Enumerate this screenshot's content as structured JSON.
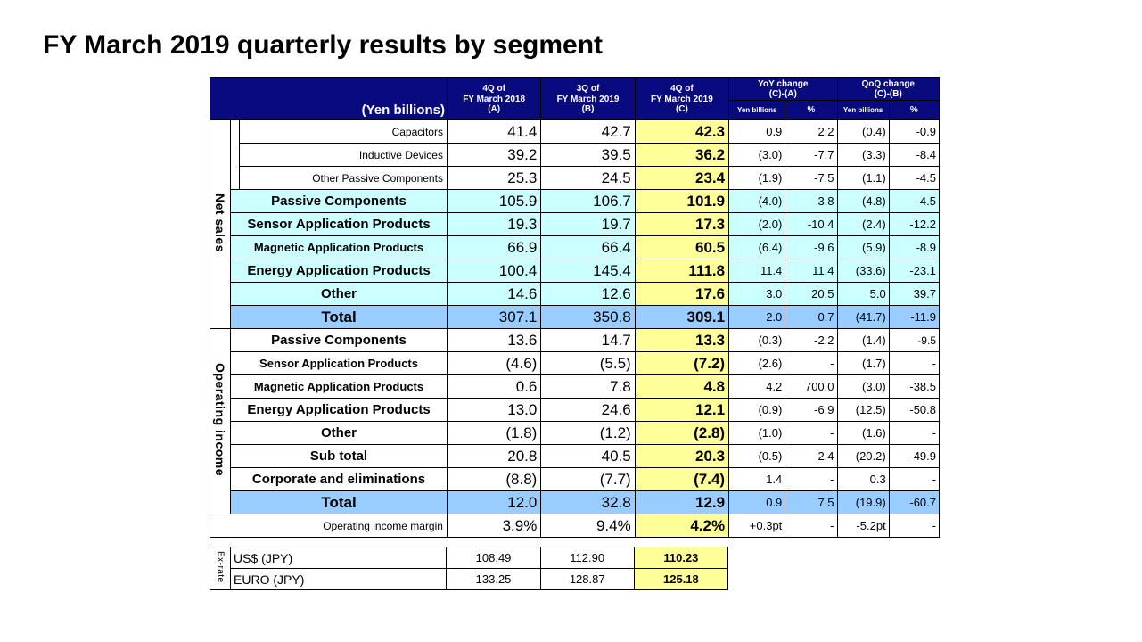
{
  "title": "FY March 2019 quarterly results by segment",
  "header": {
    "unit": "(Yen billions)",
    "col_a": [
      "4Q of",
      "FY March 2018",
      "(A)"
    ],
    "col_b": [
      "3Q of",
      "FY March 2019",
      "(B)"
    ],
    "col_c": [
      "4Q of",
      "FY March 2019",
      "(C)"
    ],
    "yoy": [
      "YoY change",
      "(C)-(A)"
    ],
    "qoq": [
      "QoQ change",
      "(C)-(B)"
    ],
    "yen_billions": "Yen billions",
    "pct": "%"
  },
  "net_sales": {
    "label": "Net sales",
    "rows": [
      {
        "label": "Capacitors",
        "a": "41.4",
        "b": "42.7",
        "c": "42.3",
        "yoy": "0.9",
        "yoy_pct": "2.2",
        "qoq": "(0.4)",
        "qoq_pct": "-0.9"
      },
      {
        "label": "Inductive Devices",
        "a": "39.2",
        "b": "39.5",
        "c": "36.2",
        "yoy": "(3.0)",
        "yoy_pct": "-7.7",
        "qoq": "(3.3)",
        "qoq_pct": "-8.4"
      },
      {
        "label": "Other Passive Components",
        "a": "25.3",
        "b": "24.5",
        "c": "23.4",
        "yoy": "(1.9)",
        "yoy_pct": "-7.5",
        "qoq": "(1.1)",
        "qoq_pct": "-4.5"
      },
      {
        "label": "Passive Components",
        "a": "105.9",
        "b": "106.7",
        "c": "101.9",
        "yoy": "(4.0)",
        "yoy_pct": "-3.8",
        "qoq": "(4.8)",
        "qoq_pct": "-4.5"
      },
      {
        "label": "Sensor Application Products",
        "a": "19.3",
        "b": "19.7",
        "c": "17.3",
        "yoy": "(2.0)",
        "yoy_pct": "-10.4",
        "qoq": "(2.4)",
        "qoq_pct": "-12.2"
      },
      {
        "label": "Magnetic Application Products",
        "a": "66.9",
        "b": "66.4",
        "c": "60.5",
        "yoy": "(6.4)",
        "yoy_pct": "-9.6",
        "qoq": "(5.9)",
        "qoq_pct": "-8.9"
      },
      {
        "label": "Energy Application Products",
        "a": "100.4",
        "b": "145.4",
        "c": "111.8",
        "yoy": "11.4",
        "yoy_pct": "11.4",
        "qoq": "(33.6)",
        "qoq_pct": "-23.1"
      },
      {
        "label": "Other",
        "a": "14.6",
        "b": "12.6",
        "c": "17.6",
        "yoy": "3.0",
        "yoy_pct": "20.5",
        "qoq": "5.0",
        "qoq_pct": "39.7"
      },
      {
        "label": "Total",
        "a": "307.1",
        "b": "350.8",
        "c": "309.1",
        "yoy": "2.0",
        "yoy_pct": "0.7",
        "qoq": "(41.7)",
        "qoq_pct": "-11.9"
      }
    ]
  },
  "operating_income": {
    "label": "Operating income",
    "rows": [
      {
        "label": "Passive Components",
        "a": "13.6",
        "b": "14.7",
        "c": "13.3",
        "yoy": "(0.3)",
        "yoy_pct": "-2.2",
        "qoq": "(1.4)",
        "qoq_pct": "-9.5"
      },
      {
        "label": "Sensor Application Products",
        "a": "(4.6)",
        "b": "(5.5)",
        "c": "(7.2)",
        "yoy": "(2.6)",
        "yoy_pct": "-",
        "qoq": "(1.7)",
        "qoq_pct": "-"
      },
      {
        "label": "Magnetic Application Products",
        "a": "0.6",
        "b": "7.8",
        "c": "4.8",
        "yoy": "4.2",
        "yoy_pct": "700.0",
        "qoq": "(3.0)",
        "qoq_pct": "-38.5"
      },
      {
        "label": "Energy Application Products",
        "a": "13.0",
        "b": "24.6",
        "c": "12.1",
        "yoy": "(0.9)",
        "yoy_pct": "-6.9",
        "qoq": "(12.5)",
        "qoq_pct": "-50.8"
      },
      {
        "label": "Other",
        "a": "(1.8)",
        "b": "(1.2)",
        "c": "(2.8)",
        "yoy": "(1.0)",
        "yoy_pct": "-",
        "qoq": "(1.6)",
        "qoq_pct": "-"
      },
      {
        "label": "Sub total",
        "a": "20.8",
        "b": "40.5",
        "c": "20.3",
        "yoy": "(0.5)",
        "yoy_pct": "-2.4",
        "qoq": "(20.2)",
        "qoq_pct": "-49.9"
      },
      {
        "label": "Corporate and eliminations",
        "a": "(8.8)",
        "b": "(7.7)",
        "c": "(7.4)",
        "yoy": "1.4",
        "yoy_pct": "-",
        "qoq": "0.3",
        "qoq_pct": "-"
      },
      {
        "label": "Total",
        "a": "12.0",
        "b": "32.8",
        "c": "12.9",
        "yoy": "0.9",
        "yoy_pct": "7.5",
        "qoq": "(19.9)",
        "qoq_pct": "-60.7"
      }
    ]
  },
  "margin": {
    "label": "Operating income margin",
    "a": "3.9%",
    "b": "9.4%",
    "c": "4.2%",
    "yoy": "+0.3pt",
    "yoy_pct": "-",
    "qoq": "-5.2pt",
    "qoq_pct": "-"
  },
  "exrate": {
    "label": "Ex-rate",
    "rows": [
      {
        "label": "US$ (JPY)",
        "a": "108.49",
        "b": "112.90",
        "c": "110.23"
      },
      {
        "label": "EURO (JPY)",
        "a": "133.25",
        "b": "128.87",
        "c": "125.18"
      }
    ]
  },
  "colors": {
    "header_bg": "#0a0a7f",
    "highlight": "#ffff99",
    "segment": "#ccffff",
    "total": "#99ccff"
  }
}
